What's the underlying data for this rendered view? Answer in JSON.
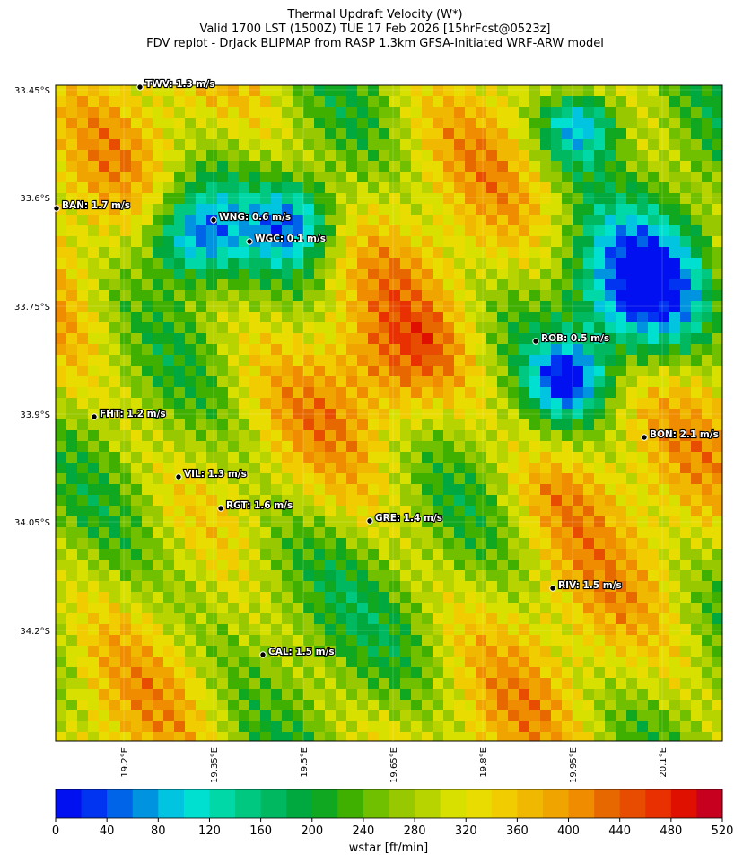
{
  "title": [
    "Thermal Updraft Velocity (W*)",
    "Valid 1700 LST (1500Z) TUE 17 Feb 2026 [15hrFcst@0523z]",
    "FDV replot - DrJack BLIPMAP from RASP 1.3km GFSA-Initiated WRF-ARW model"
  ],
  "map": {
    "lat_ticks": [
      "33.45°S",
      "33.6°S",
      "33.75°S",
      "33.9°S",
      "34.05°S",
      "34.2°S"
    ],
    "lon_ticks": [
      "19.2°E",
      "19.35°E",
      "19.5°E",
      "19.65°E",
      "19.8°E",
      "19.95°E",
      "20.1°E"
    ],
    "stations": [
      "TWV: 1.3 m/s",
      "BAN: 1.7 m/s",
      "WNG: 0.6 m/s",
      "WGC: 0.1 m/s",
      "ROB: 0.5 m/s",
      "FHT: 1.2 m/s",
      "BON: 2.1 m/s",
      "VIL: 1.3 m/s",
      "RGT: 1.6 m/s",
      "GRE: 1.4 m/s",
      "RIV: 1.5 m/s",
      "CAL: 1.5 m/s"
    ]
  },
  "colorbar": {
    "lim": [
      0,
      520
    ],
    "ticks": [
      0,
      40,
      80,
      120,
      160,
      200,
      240,
      280,
      320,
      360,
      400,
      440,
      480,
      520
    ],
    "label": "wstar [ft/min]",
    "colors": [
      "#0010f0",
      "#0034f0",
      "#0064e8",
      "#0094e0",
      "#00c4e0",
      "#00e0d0",
      "#00d8a8",
      "#00c880",
      "#00b860",
      "#00a840",
      "#10a820",
      "#40b000",
      "#70c000",
      "#98c800",
      "#b8d400",
      "#d8e000",
      "#e8dc00",
      "#f0cc00",
      "#f0b800",
      "#f0a400",
      "#f08c00",
      "#e86800",
      "#e84c00",
      "#e83000",
      "#e01000",
      "#c80020"
    ]
  }
}
